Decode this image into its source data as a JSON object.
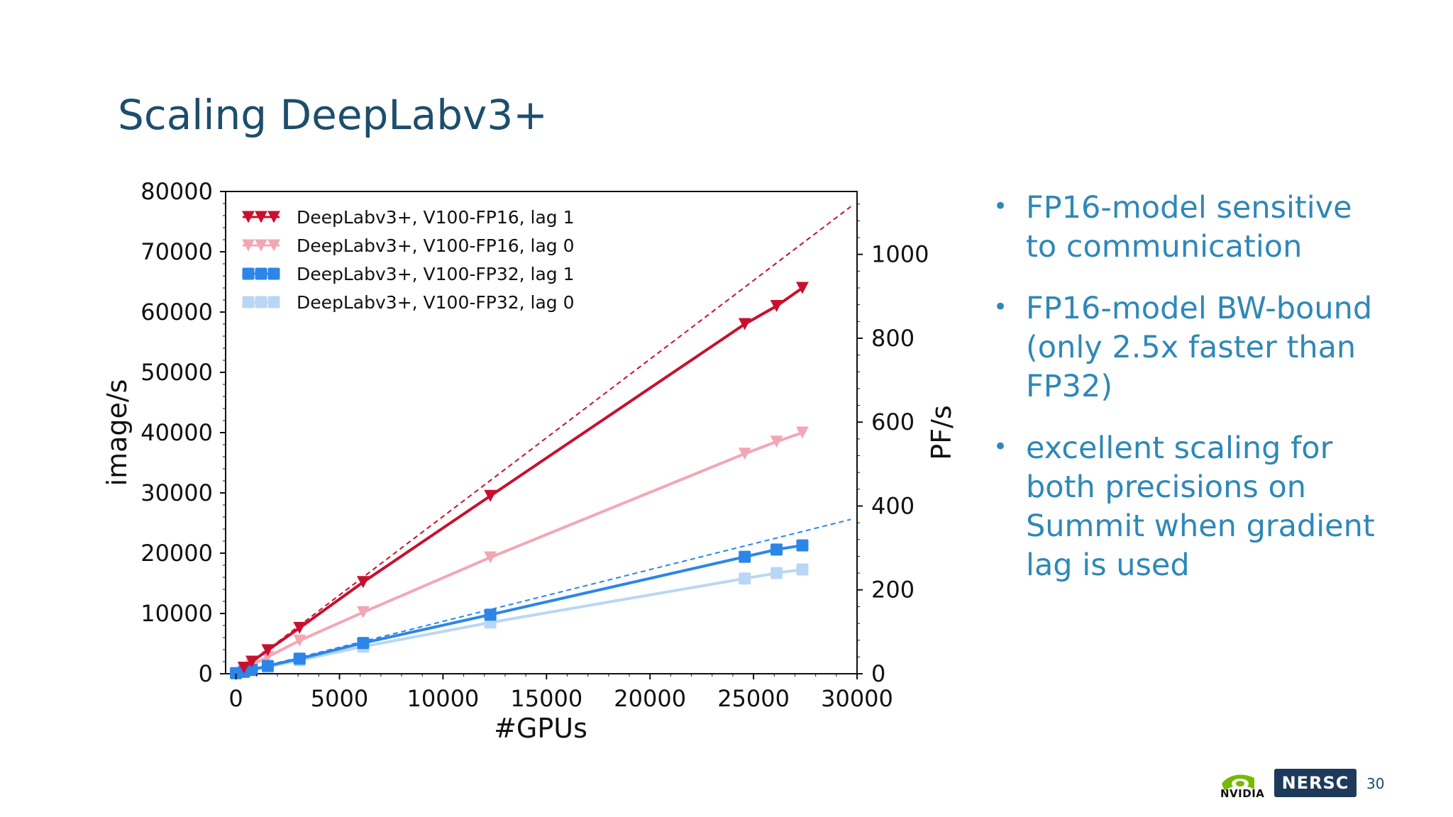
{
  "slide": {
    "title": "Scaling DeepLabv3+",
    "page_number": "30"
  },
  "bullets": [
    "FP16-model sensitive to communication",
    "FP16-model BW-bound (only 2.5x faster than FP32)",
    "excellent scaling for both precisions on Summit when gradient lag is used"
  ],
  "logos": {
    "nvidia_text": "NVIDIA",
    "nersc_text": "NERSC"
  },
  "chart_data": {
    "type": "line",
    "xlabel": "#GPUs",
    "ylabel": "image/s",
    "y2label": "PF/s",
    "xlim": [
      -500,
      30000
    ],
    "ylim": [
      0,
      80000
    ],
    "y2lim": [
      0,
      1150
    ],
    "xticks": [
      0,
      5000,
      10000,
      15000,
      20000,
      25000,
      30000
    ],
    "yticks": [
      0,
      10000,
      20000,
      30000,
      40000,
      50000,
      60000,
      70000,
      80000
    ],
    "y2ticks": [
      0,
      200,
      400,
      600,
      800,
      1000
    ],
    "legend_position": "top-left",
    "colors": {
      "fp16_lag1": "#c8102e",
      "fp16_lag0": "#f2a7b4",
      "fp32_lag1": "#2b86e8",
      "fp32_lag0": "#b9d7f4"
    },
    "series": [
      {
        "name": "DeepLabv3+, V100-FP16, lag 1",
        "marker": "triangle-down",
        "color": "#c8102e",
        "x": [
          384,
          768,
          1536,
          3072,
          6144,
          12288,
          24576,
          26112,
          27360
        ],
        "y": [
          1000,
          2000,
          3900,
          7600,
          15200,
          29500,
          58000,
          61000,
          64000
        ]
      },
      {
        "name": "DeepLabv3+, V100-FP16, lag 0",
        "marker": "triangle-down",
        "color": "#f2a7b4",
        "x": [
          384,
          768,
          1536,
          3072,
          6144,
          12288,
          24576,
          26112,
          27360
        ],
        "y": [
          700,
          1400,
          2800,
          5500,
          10200,
          19300,
          36500,
          38500,
          40000
        ]
      },
      {
        "name": "DeepLabv3+, V100-FP32, lag 1",
        "marker": "square",
        "color": "#2b86e8",
        "x": [
          0,
          384,
          768,
          1536,
          3072,
          6144,
          12288,
          24576,
          26112,
          27360
        ],
        "y": [
          100,
          330,
          650,
          1300,
          2500,
          5100,
          9800,
          19400,
          20600,
          21300
        ]
      },
      {
        "name": "DeepLabv3+, V100-FP32, lag 0",
        "marker": "square",
        "color": "#b9d7f4",
        "x": [
          0,
          384,
          768,
          1536,
          3072,
          6144,
          12288,
          24576,
          26112,
          27360
        ],
        "y": [
          80,
          290,
          570,
          1150,
          2250,
          4500,
          8500,
          15800,
          16700,
          17300
        ]
      }
    ],
    "ideal_lines": [
      {
        "color": "#c8102e",
        "x": [
          384,
          29700
        ],
        "y": [
          1000,
          77500
        ]
      },
      {
        "color": "#2b86e8",
        "x": [
          0,
          29700
        ],
        "y": [
          100,
          25600
        ]
      }
    ]
  }
}
